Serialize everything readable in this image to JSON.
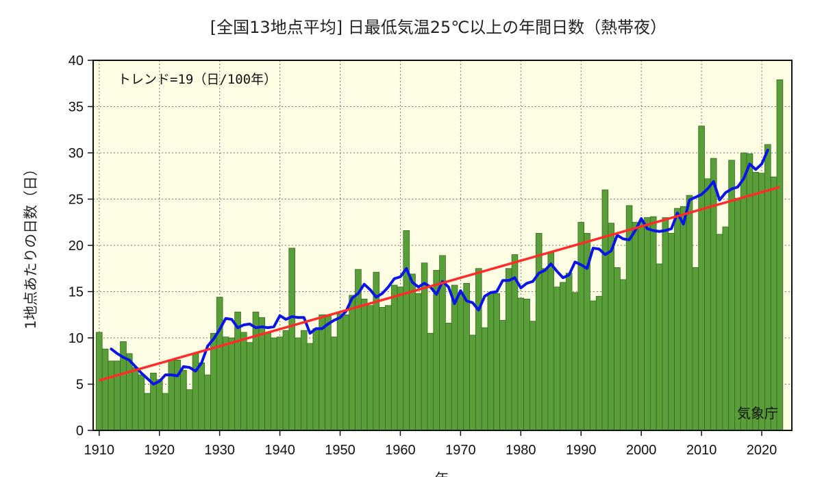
{
  "chart_data": {
    "type": "bar",
    "title": "[全国13地点平均] 日最低気温25℃以上の年間日数（熱帯夜）",
    "xlabel": "年",
    "ylabel": "1地点あたりの日数（日）",
    "annotation": "トレンド=19（日/100年）",
    "credit": "気象庁",
    "xlim": [
      1909,
      2025
    ],
    "ylim": [
      0,
      40
    ],
    "x_ticks": [
      1910,
      1920,
      1930,
      1940,
      1950,
      1960,
      1970,
      1980,
      1990,
      2000,
      2010,
      2020
    ],
    "y_ticks": [
      0,
      5,
      10,
      15,
      20,
      25,
      30,
      35,
      40
    ],
    "grid": true,
    "colors": {
      "bar_fill": "#5a9e3a",
      "bar_edge": "#2f6b1e",
      "moving_average": "#0a14e6",
      "trend": "#ff2a2a",
      "plot_background": "#fdfde4"
    },
    "years": [
      1910,
      1911,
      1912,
      1913,
      1914,
      1915,
      1916,
      1917,
      1918,
      1919,
      1920,
      1921,
      1922,
      1923,
      1924,
      1925,
      1926,
      1927,
      1928,
      1929,
      1930,
      1931,
      1932,
      1933,
      1934,
      1935,
      1936,
      1937,
      1938,
      1939,
      1940,
      1941,
      1942,
      1943,
      1944,
      1945,
      1946,
      1947,
      1948,
      1949,
      1950,
      1951,
      1952,
      1953,
      1954,
      1955,
      1956,
      1957,
      1958,
      1959,
      1960,
      1961,
      1962,
      1963,
      1964,
      1965,
      1966,
      1967,
      1968,
      1969,
      1970,
      1971,
      1972,
      1973,
      1974,
      1975,
      1976,
      1977,
      1978,
      1979,
      1980,
      1981,
      1982,
      1983,
      1984,
      1985,
      1986,
      1987,
      1988,
      1989,
      1990,
      1991,
      1992,
      1993,
      1994,
      1995,
      1996,
      1997,
      1998,
      1999,
      2000,
      2001,
      2002,
      2003,
      2004,
      2005,
      2006,
      2007,
      2008,
      2009,
      2010,
      2011,
      2012,
      2013,
      2014,
      2015,
      2016,
      2017,
      2018,
      2019,
      2020,
      2021,
      2022,
      2023
    ],
    "series": [
      {
        "kind": "bar",
        "values": [
          10.6,
          8.8,
          7.5,
          7.5,
          9.6,
          8.3,
          6.8,
          6.0,
          4.0,
          6.2,
          5.5,
          4.0,
          7.6,
          7.6,
          6.5,
          4.4,
          8.3,
          7.3,
          6.0,
          10.5,
          14.4,
          10.1,
          10.0,
          12.8,
          10.6,
          9.5,
          12.8,
          12.2,
          10.6,
          10.0,
          10.1,
          10.8,
          19.7,
          10.0,
          10.8,
          9.4,
          11.0,
          12.5,
          12.5,
          10.1,
          12.6,
          12.5,
          14.6,
          17.4,
          14.2,
          13.5,
          17.1,
          13.3,
          13.5,
          15.7,
          15.5,
          21.6,
          16.9,
          14.8,
          18.1,
          10.5,
          17.3,
          18.9,
          11.6,
          15.7,
          14.7,
          15.9,
          10.3,
          17.5,
          11.1,
          14.8,
          14.8,
          11.9,
          17.5,
          19.0,
          14.3,
          14.2,
          11.8,
          21.3,
          17.5,
          19.2,
          15.5,
          16.0,
          17.0,
          14.9,
          22.5,
          21.3,
          14.0,
          14.5,
          26.0,
          22.4,
          17.6,
          16.3,
          24.3,
          22.5,
          22.5,
          23.0,
          23.1,
          18.0,
          23.0,
          21.3,
          24.0,
          24.2,
          25.4,
          17.6,
          32.9,
          27.2,
          29.4,
          21.2,
          22.0,
          29.2,
          25.1,
          30.0,
          29.9,
          27.9,
          27.8,
          30.9,
          27.4,
          37.9
        ]
      },
      {
        "kind": "line",
        "label": "5-year moving average",
        "x": [
          1912,
          1913,
          1914,
          1915,
          1916,
          1917,
          1918,
          1919,
          1920,
          1921,
          1922,
          1923,
          1924,
          1925,
          1926,
          1927,
          1928,
          1929,
          1930,
          1931,
          1932,
          1933,
          1934,
          1935,
          1936,
          1937,
          1938,
          1939,
          1940,
          1941,
          1942,
          1943,
          1944,
          1945,
          1946,
          1947,
          1948,
          1949,
          1950,
          1951,
          1952,
          1953,
          1954,
          1955,
          1956,
          1957,
          1958,
          1959,
          1960,
          1961,
          1962,
          1963,
          1964,
          1965,
          1966,
          1967,
          1968,
          1969,
          1970,
          1971,
          1972,
          1973,
          1974,
          1975,
          1976,
          1977,
          1978,
          1979,
          1980,
          1981,
          1982,
          1983,
          1984,
          1985,
          1986,
          1987,
          1988,
          1989,
          1990,
          1991,
          1992,
          1993,
          1994,
          1995,
          1996,
          1997,
          1998,
          1999,
          2000,
          2001,
          2002,
          2003,
          2004,
          2005,
          2006,
          2007,
          2008,
          2009,
          2010,
          2011,
          2012,
          2013,
          2014,
          2015,
          2016,
          2017,
          2018,
          2019,
          2020,
          2021
        ],
        "values": [
          8.8,
          8.3,
          7.9,
          7.6,
          6.9,
          6.2,
          5.6,
          5.0,
          5.3,
          6.0,
          6.0,
          5.9,
          6.9,
          6.8,
          6.4,
          7.3,
          9.1,
          9.9,
          10.9,
          12.1,
          12.0,
          11.1,
          11.4,
          11.5,
          11.1,
          11.2,
          11.1,
          11.2,
          12.4,
          12.0,
          12.3,
          12.2,
          12.2,
          10.5,
          11.0,
          11.0,
          11.5,
          11.9,
          12.2,
          12.9,
          14.3,
          14.8,
          15.8,
          15.2,
          14.4,
          14.8,
          15.5,
          16.4,
          16.6,
          17.5,
          16.0,
          15.5,
          15.9,
          15.5,
          14.7,
          16.1,
          15.5,
          13.7,
          15.1,
          14.0,
          13.8,
          13.0,
          14.5,
          14.9,
          15.0,
          16.2,
          16.2,
          16.5,
          15.4,
          15.9,
          16.1,
          17.0,
          17.3,
          18.0,
          17.2,
          16.5,
          16.8,
          18.2,
          17.9,
          17.5,
          19.7,
          19.6,
          19.0,
          19.4,
          21.1,
          20.7,
          20.6,
          21.6,
          22.9,
          21.8,
          21.6,
          21.5,
          21.6,
          21.8,
          23.5,
          22.3,
          24.9,
          25.2,
          25.5,
          26.1,
          26.9,
          24.9,
          25.7,
          26.1,
          26.3,
          27.2,
          28.8,
          28.2,
          28.8,
          30.3
        ]
      },
      {
        "kind": "line",
        "label": "trend",
        "x": [
          1910,
          2023
        ],
        "values": [
          5.4,
          26.3
        ]
      }
    ]
  }
}
